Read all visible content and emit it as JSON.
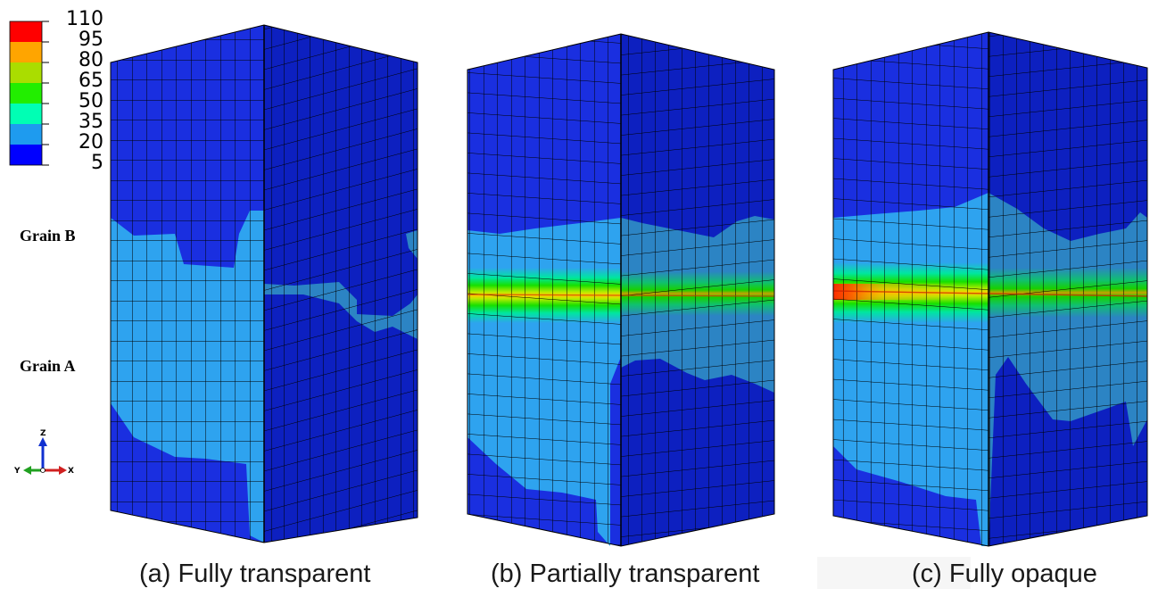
{
  "legend": {
    "ticks": [
      "110",
      "95",
      "80",
      "65",
      "50",
      "35",
      "20",
      "5"
    ],
    "colors": [
      "#ff0000",
      "#ffa500",
      "#aadd00",
      "#22ee00",
      "#00ffb4",
      "#1e9bef",
      "#0000ff"
    ]
  },
  "grain_labels": {
    "top": "Grain B",
    "bottom": "Grain A"
  },
  "triad": {
    "z": "Z",
    "y": "Y",
    "x": "X"
  },
  "captions": [
    "(a) Fully transparent",
    "(b) Partially transparent",
    "(c) Fully opaque"
  ],
  "palette": {
    "front_dark": "#1a2fe0",
    "side_dark": "#0d20c0",
    "light": "#2ea3ef",
    "light_side": "#2c84c4",
    "green": "#18e000",
    "yellow": "#b8ec00",
    "red": "#ff1a00",
    "mesh": "#000000"
  }
}
